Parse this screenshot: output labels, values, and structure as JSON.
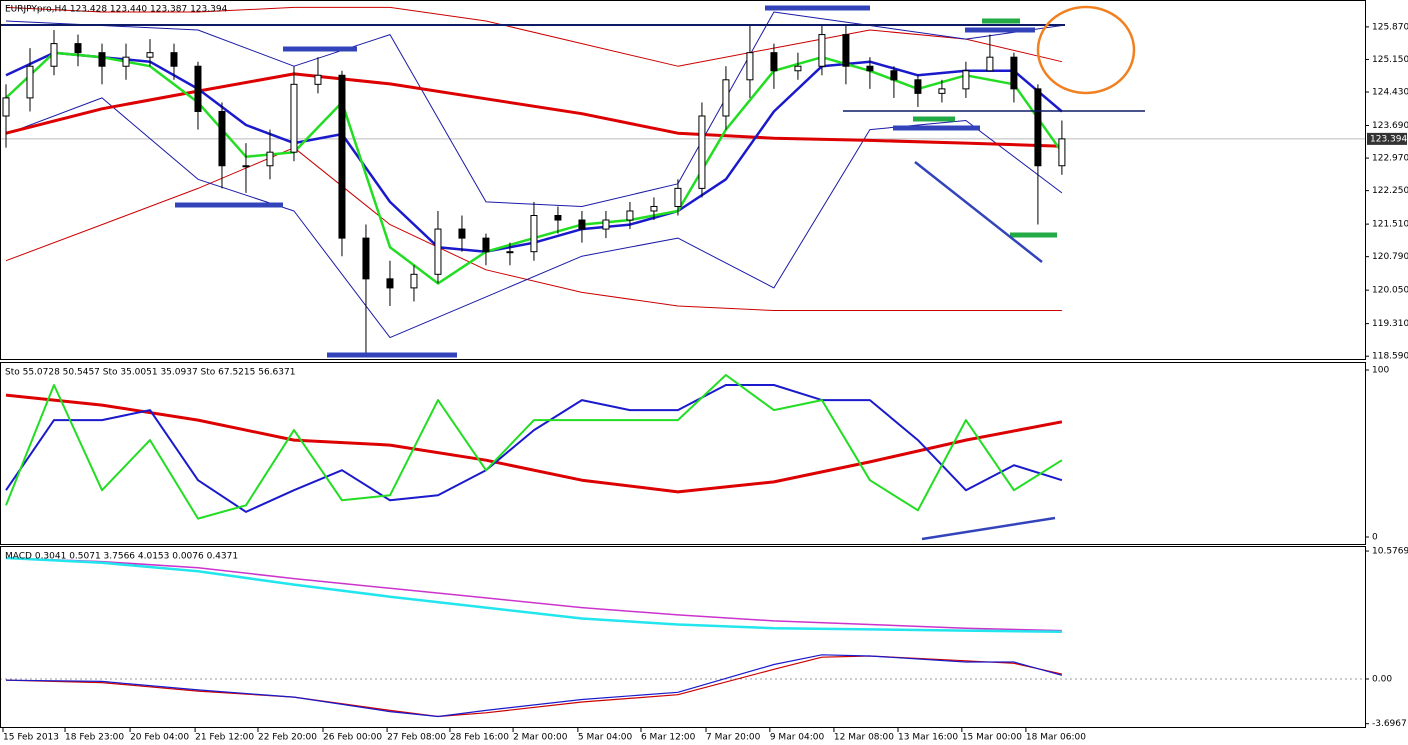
{
  "chart_data": [
    {
      "type": "candlestick",
      "title": "EURJPYpro,H4  123.428 123.440 123.387 123.394",
      "current_price": 123.394,
      "xlim": [
        -0.25,
        56.63
      ],
      "ylim": [
        118.55,
        126.42
      ],
      "yticks": [
        {
          "value": 125.87,
          "label": "125.870"
        },
        {
          "value": 125.15,
          "label": "125.150"
        },
        {
          "value": 124.43,
          "label": "124.430"
        },
        {
          "value": 123.69,
          "label": "123.690"
        },
        {
          "value": 122.97,
          "label": "122.970"
        },
        {
          "value": 122.25,
          "label": "122.250"
        },
        {
          "value": 121.51,
          "label": "121.510"
        },
        {
          "value": 120.79,
          "label": "120.790"
        },
        {
          "value": 120.05,
          "label": "120.050"
        },
        {
          "value": 119.31,
          "label": "119.310"
        },
        {
          "value": 118.59,
          "label": "118.590"
        }
      ],
      "up_color": "#ffffff",
      "down_color": "#000000",
      "open": [
        123.9,
        124.3,
        125.0,
        125.5,
        125.3,
        125.0,
        125.2,
        125.3,
        125.0,
        124.0,
        122.8,
        122.8,
        123.1,
        124.6,
        124.8,
        121.2,
        120.3,
        120.1,
        120.4,
        121.4,
        121.2,
        120.9,
        120.9,
        121.7,
        121.6,
        121.4,
        121.6,
        121.8,
        121.9,
        122.3,
        123.9,
        124.7,
        125.3,
        124.9,
        125.0,
        125.7,
        125.0,
        124.9,
        124.7,
        124.4,
        124.5,
        124.9,
        125.2,
        124.5,
        122.8
      ],
      "high": [
        124.6,
        125.4,
        125.8,
        125.7,
        125.5,
        125.5,
        125.6,
        125.5,
        125.1,
        124.2,
        123.3,
        123.6,
        125.0,
        125.2,
        124.9,
        121.5,
        120.7,
        120.6,
        121.8,
        121.7,
        121.3,
        121.1,
        122.0,
        121.9,
        121.8,
        121.8,
        122.0,
        122.1,
        122.5,
        124.2,
        125.0,
        125.9,
        125.5,
        125.3,
        125.9,
        125.9,
        125.2,
        125.0,
        124.8,
        124.7,
        125.1,
        125.7,
        125.3,
        124.6,
        123.8
      ],
      "low": [
        123.2,
        124.0,
        124.8,
        125.0,
        124.6,
        124.7,
        125.0,
        124.7,
        123.6,
        122.3,
        122.2,
        122.5,
        122.9,
        124.4,
        120.8,
        118.6,
        119.7,
        119.8,
        120.2,
        120.9,
        120.6,
        120.6,
        120.7,
        121.3,
        121.1,
        121.2,
        121.4,
        121.6,
        121.7,
        122.1,
        123.6,
        124.3,
        124.5,
        124.7,
        124.8,
        124.6,
        124.5,
        124.3,
        124.1,
        124.2,
        124.3,
        124.9,
        124.2,
        121.5,
        122.6
      ],
      "close": [
        124.3,
        125.0,
        125.5,
        125.3,
        125.0,
        125.2,
        125.3,
        125.0,
        124.0,
        122.8,
        122.8,
        123.1,
        124.6,
        124.8,
        121.2,
        120.3,
        120.1,
        120.4,
        121.4,
        121.2,
        120.9,
        120.9,
        121.7,
        121.6,
        121.4,
        121.6,
        121.8,
        121.9,
        122.3,
        123.9,
        124.7,
        125.3,
        124.9,
        125.0,
        125.7,
        125.0,
        124.9,
        124.7,
        124.4,
        124.5,
        124.9,
        125.2,
        124.5,
        122.8,
        123.394
      ],
      "series": [
        {
          "color": "#cc0000",
          "width": 1,
          "x": [
            0,
            4,
            8,
            12,
            16,
            20,
            24,
            28,
            32,
            36,
            40,
            44
          ],
          "values": [
            126.3,
            126.2,
            126.2,
            126.3,
            126.3,
            126.0,
            125.5,
            125.0,
            125.4,
            125.8,
            125.6,
            125.1
          ]
        },
        {
          "color": "#cc0000",
          "width": 1,
          "x": [
            0,
            4,
            8,
            12,
            16,
            20,
            24,
            28,
            32,
            36,
            40,
            44
          ],
          "values": [
            120.7,
            121.5,
            122.3,
            123.2,
            121.5,
            120.5,
            120.0,
            119.7,
            119.6,
            119.6,
            119.6,
            119.6
          ]
        },
        {
          "color": "#1a1aa6",
          "width": 1,
          "x": [
            0,
            4,
            8,
            12,
            16,
            20,
            24,
            28,
            32,
            36,
            40,
            44
          ],
          "values": [
            126.0,
            125.9,
            125.8,
            125.0,
            125.7,
            122.0,
            121.9,
            122.4,
            126.2,
            125.9,
            125.6,
            125.9
          ]
        },
        {
          "color": "#1a1aa6",
          "width": 1,
          "x": [
            0,
            4,
            8,
            12,
            16,
            20,
            24,
            28,
            32,
            36,
            40,
            44
          ],
          "values": [
            123.5,
            124.3,
            122.5,
            121.8,
            119.0,
            119.9,
            120.8,
            121.2,
            120.1,
            123.6,
            123.8,
            122.2
          ]
        },
        {
          "color": "#dd0000",
          "width": 3,
          "x": [
            0,
            4,
            8,
            12,
            16,
            20,
            24,
            28,
            32,
            36,
            40,
            44
          ],
          "values": [
            123.52,
            124.06,
            124.45,
            124.83,
            124.61,
            124.28,
            123.95,
            123.52,
            123.41,
            123.36,
            123.3,
            123.23
          ]
        },
        {
          "color": "#1a1acc",
          "width": 2.5,
          "x": [
            0,
            2,
            4,
            6,
            8,
            10,
            12,
            14,
            16,
            18,
            20,
            22,
            24,
            26,
            28,
            30,
            32,
            34,
            36,
            38,
            40,
            42,
            44
          ],
          "values": [
            124.8,
            125.3,
            125.2,
            125.1,
            124.5,
            123.7,
            123.3,
            123.5,
            122.0,
            121.0,
            120.9,
            121.1,
            121.4,
            121.5,
            121.8,
            122.5,
            124.0,
            125.0,
            125.1,
            124.8,
            124.9,
            124.9,
            124.0
          ]
        },
        {
          "color": "#22dd22",
          "width": 2.5,
          "x": [
            0,
            2,
            4,
            6,
            8,
            10,
            12,
            14,
            16,
            18,
            20,
            22,
            24,
            26,
            28,
            30,
            32,
            34,
            36,
            38,
            40,
            42,
            44
          ],
          "values": [
            124.3,
            125.3,
            125.2,
            125.0,
            124.2,
            123.0,
            123.1,
            124.2,
            121.0,
            120.2,
            120.9,
            121.2,
            121.5,
            121.6,
            121.8,
            123.6,
            124.9,
            125.2,
            124.9,
            124.5,
            124.8,
            124.6,
            123.1
          ]
        }
      ]
    },
    {
      "type": "line",
      "title": "Sto 55.0728 50.5457  Sto 35.0051 35.0937  Sto 67.5215 56.6371",
      "xlim": [
        -0.25,
        56.63
      ],
      "ylim": [
        0,
        100
      ],
      "yticks": [
        100,
        0
      ],
      "series": [
        {
          "color": "#dd0000",
          "width": 3,
          "x": [
            0,
            4,
            8,
            12,
            16,
            20,
            24,
            28,
            32,
            36,
            40,
            44
          ],
          "values": [
            85,
            79,
            70,
            58,
            55,
            46,
            34,
            27,
            33,
            45,
            58,
            69
          ]
        },
        {
          "color": "#1a1acc",
          "width": 2,
          "x": [
            0,
            2,
            4,
            6,
            8,
            10,
            12,
            14,
            16,
            18,
            20,
            22,
            24,
            26,
            28,
            30,
            32,
            34,
            36,
            38,
            40,
            42,
            44
          ],
          "values": [
            28,
            70,
            70,
            76,
            34,
            15,
            28,
            40,
            22,
            25,
            40,
            64,
            82,
            76,
            76,
            91,
            91,
            82,
            82,
            58,
            28,
            43,
            34
          ]
        },
        {
          "color": "#22dd22",
          "width": 2,
          "x": [
            0,
            2,
            4,
            6,
            8,
            10,
            12,
            14,
            16,
            18,
            20,
            22,
            24,
            26,
            28,
            30,
            32,
            34,
            36,
            38,
            40,
            42,
            44
          ],
          "values": [
            19,
            91,
            28,
            58,
            11,
            19,
            64,
            22,
            25,
            82,
            40,
            70,
            70,
            70,
            70,
            97,
            76,
            82,
            34,
            16,
            70,
            28,
            46
          ]
        }
      ]
    },
    {
      "type": "line",
      "title": "MACD 0.3041 0.5071 3.7566 4.0153 0.0076 0.4371",
      "xlim": [
        -0.25,
        56.63
      ],
      "ylim": [
        -3.97,
        10.91
      ],
      "yticks": [
        10.5769,
        {
          "value": 0,
          "label": "0.00"
        },
        -3.6967
      ],
      "xticks": [
        {
          "value": -0.13,
          "label": "15 Feb 2013"
        },
        {
          "value": 2.46,
          "label": "18 Feb 23:00"
        },
        {
          "value": 5.17,
          "label": "20 Feb 04:00"
        },
        {
          "value": 7.88,
          "label": "21 Feb 12:00"
        },
        {
          "value": 10.5,
          "label": "22 Feb 20:00"
        },
        {
          "value": 13.21,
          "label": "26 Feb 00:00"
        },
        {
          "value": 15.88,
          "label": "27 Feb 08:00"
        },
        {
          "value": 18.5,
          "label": "28 Feb 16:00"
        },
        {
          "value": 21.13,
          "label": "2 Mar 00:00"
        },
        {
          "value": 23.83,
          "label": "5 Mar 04:00"
        },
        {
          "value": 26.46,
          "label": "6 Mar 12:00"
        },
        {
          "value": 29.17,
          "label": "7 Mar 20:00"
        },
        {
          "value": 31.83,
          "label": "9 Mar 04:00"
        },
        {
          "value": 34.5,
          "label": "12 Mar 08:00"
        },
        {
          "value": 37.17,
          "label": "13 Mar 16:00"
        },
        {
          "value": 39.83,
          "label": "15 Mar 00:00"
        },
        {
          "value": 42.5,
          "label": "18 Mar 06:00"
        }
      ],
      "series": [
        {
          "color": "#cc33cc",
          "width": 1.5,
          "x": [
            0,
            4,
            8,
            12,
            16,
            20,
            24,
            28,
            32,
            36,
            40,
            44
          ],
          "values": [
            10.0,
            9.7,
            9.2,
            8.3,
            7.5,
            6.7,
            5.9,
            5.3,
            4.8,
            4.5,
            4.2,
            4.0
          ]
        },
        {
          "color": "#22e5ee",
          "width": 2.5,
          "x": [
            0,
            4,
            8,
            12,
            16,
            20,
            24,
            28,
            32,
            36,
            40,
            44
          ],
          "values": [
            10.0,
            9.6,
            8.9,
            7.8,
            6.8,
            5.9,
            5.0,
            4.5,
            4.2,
            4.1,
            4.0,
            3.9
          ]
        },
        {
          "color": "#cc0000",
          "width": 1.2,
          "x": [
            0,
            4,
            8,
            12,
            16,
            18,
            20,
            24,
            28,
            32,
            34,
            36,
            40,
            42,
            44
          ],
          "values": [
            -0.1,
            -0.3,
            -1.0,
            -1.5,
            -2.6,
            -3.1,
            -2.8,
            -1.9,
            -1.3,
            0.8,
            1.8,
            1.9,
            1.5,
            1.3,
            0.4
          ]
        },
        {
          "color": "#1a1acc",
          "width": 1.2,
          "x": [
            0,
            4,
            8,
            12,
            16,
            18,
            20,
            24,
            28,
            32,
            34,
            36,
            40,
            42,
            44
          ],
          "values": [
            -0.1,
            -0.2,
            -0.9,
            -1.5,
            -2.7,
            -3.1,
            -2.6,
            -1.7,
            -1.1,
            1.2,
            2.0,
            1.9,
            1.4,
            1.4,
            0.3
          ]
        }
      ]
    }
  ]
}
